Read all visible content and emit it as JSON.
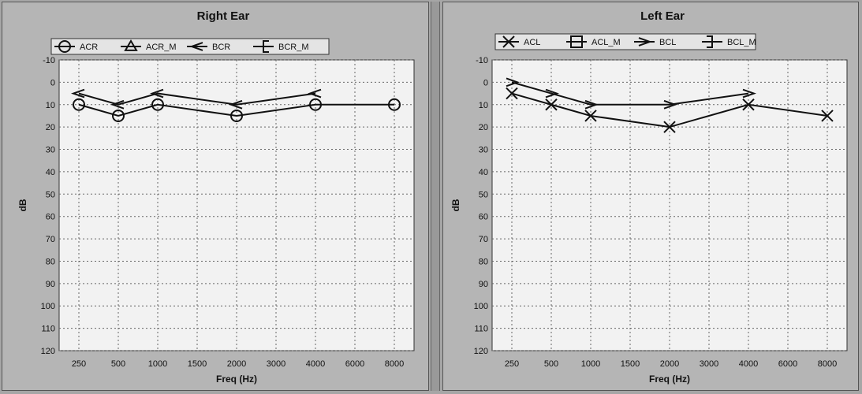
{
  "chart_data": [
    {
      "type": "line",
      "title": "Right Ear",
      "xlabel": "Freq (Hz)",
      "ylabel": "dB",
      "categories": [
        "250",
        "500",
        "1000",
        "1500",
        "2000",
        "3000",
        "4000",
        "6000",
        "8000"
      ],
      "y_ticks": [
        "-10",
        "0",
        "10",
        "20",
        "30",
        "40",
        "50",
        "60",
        "70",
        "80",
        "90",
        "100",
        "110",
        "120"
      ],
      "ylim": [
        -10,
        120
      ],
      "y_inverted": true,
      "grid": true,
      "legend_position": "top",
      "legend": [
        {
          "label": "ACR",
          "marker": "circle"
        },
        {
          "label": "ACR_M",
          "marker": "triangle"
        },
        {
          "label": "BCR",
          "marker": "lt"
        },
        {
          "label": "BCR_M",
          "marker": "bracket-left"
        }
      ],
      "series": [
        {
          "name": "ACR",
          "marker": "circle",
          "x": [
            "250",
            "500",
            "1000",
            "2000",
            "4000",
            "8000"
          ],
          "values": [
            10,
            15,
            10,
            15,
            10,
            10
          ]
        },
        {
          "name": "BCR",
          "marker": "lt",
          "x": [
            "250",
            "500",
            "1000",
            "2000",
            "4000"
          ],
          "values": [
            5,
            10,
            5,
            10,
            5
          ]
        }
      ]
    },
    {
      "type": "line",
      "title": "Left Ear",
      "xlabel": "Freq (Hz)",
      "ylabel": "dB",
      "categories": [
        "250",
        "500",
        "1000",
        "1500",
        "2000",
        "3000",
        "4000",
        "6000",
        "8000"
      ],
      "y_ticks": [
        "-10",
        "0",
        "10",
        "20",
        "30",
        "40",
        "50",
        "60",
        "70",
        "80",
        "90",
        "100",
        "110",
        "120"
      ],
      "ylim": [
        -10,
        120
      ],
      "y_inverted": true,
      "grid": true,
      "legend_position": "top",
      "legend": [
        {
          "label": "ACL",
          "marker": "x"
        },
        {
          "label": "ACL_M",
          "marker": "square"
        },
        {
          "label": "BCL",
          "marker": "gt"
        },
        {
          "label": "BCL_M",
          "marker": "bracket-right"
        }
      ],
      "series": [
        {
          "name": "ACL",
          "marker": "x",
          "x": [
            "250",
            "500",
            "1000",
            "2000",
            "4000",
            "8000"
          ],
          "values": [
            5,
            10,
            15,
            20,
            10,
            15
          ]
        },
        {
          "name": "BCL",
          "marker": "gt",
          "x": [
            "250",
            "500",
            "1000",
            "2000",
            "4000"
          ],
          "values": [
            0,
            5,
            10,
            10,
            5
          ]
        }
      ]
    }
  ]
}
